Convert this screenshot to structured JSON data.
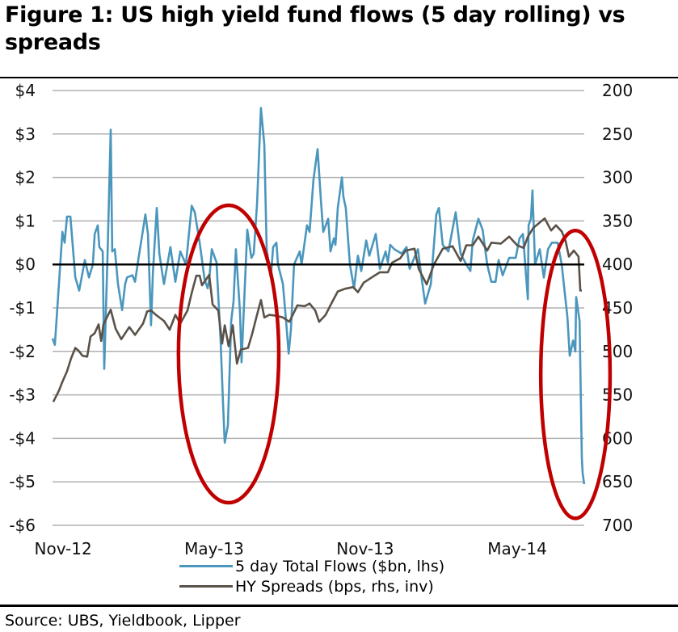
{
  "title": "Figure 1: US high yield fund flows (5 day rolling) vs spreads",
  "source": "Source:  UBS, Yieldbook, Lipper",
  "colors": {
    "flows": "#4a96bd",
    "spreads": "#5a5249",
    "annotation": "#c00000",
    "grid": "#b0b0b0",
    "zero": "#000000"
  },
  "chart_data": {
    "type": "line",
    "title": "Figure 1: US high yield fund flows (5 day rolling) vs spreads",
    "x_unit": "months since Nov-12",
    "xlim": [
      0,
      20.56
    ],
    "x_ticks": [
      {
        "x": 0.41,
        "label": "Nov-12"
      },
      {
        "x": 6.25,
        "label": "May-13"
      },
      {
        "x": 12.09,
        "label": "Nov-13"
      },
      {
        "x": 17.97,
        "label": "May-14"
      }
    ],
    "y_left": {
      "label": "5 day Total Flows ($bn)",
      "lim": [
        -6,
        4
      ],
      "ticks": [
        4,
        3,
        2,
        1,
        0,
        -1,
        -2,
        -3,
        -4,
        -5,
        -6
      ],
      "tick_labels": [
        "$4",
        "$3",
        "$2",
        "$1",
        "$0",
        "-$1",
        "-$2",
        "-$3",
        "-$4",
        "-$5",
        "-$6"
      ]
    },
    "y_right": {
      "label": "HY Spreads (bps, inverted)",
      "lim": [
        200,
        700
      ],
      "inverted": true,
      "ticks": [
        200,
        250,
        300,
        350,
        400,
        450,
        500,
        550,
        600,
        650,
        700
      ],
      "tick_labels": [
        "200",
        "250",
        "300",
        "350",
        "400",
        "450",
        "500",
        "550",
        "600",
        "650",
        "700"
      ]
    },
    "grid": true,
    "legend": [
      {
        "label": "5 day Total Flows ($bn, lhs)",
        "series": "flows"
      },
      {
        "label": "HY Spreads (bps, rhs, inv)",
        "series": "spreads"
      }
    ],
    "series": [
      {
        "name": "5 day Total Flows ($bn, lhs)",
        "key": "flows",
        "axis": "left",
        "points": [
          [
            0,
            -1.7
          ],
          [
            0.09,
            -1.85
          ],
          [
            0.31,
            0.1
          ],
          [
            0.38,
            0.75
          ],
          [
            0.47,
            0.5
          ],
          [
            0.56,
            1.1
          ],
          [
            0.69,
            1.1
          ],
          [
            0.88,
            -0.3
          ],
          [
            1.03,
            -0.6
          ],
          [
            1.25,
            0.1
          ],
          [
            1.41,
            -0.3
          ],
          [
            1.56,
            0
          ],
          [
            1.63,
            0.7
          ],
          [
            1.75,
            0.9
          ],
          [
            1.81,
            0.4
          ],
          [
            1.94,
            0.3
          ],
          [
            2.0,
            -2.4
          ],
          [
            2.13,
            0.3
          ],
          [
            2.25,
            3.1
          ],
          [
            2.31,
            0.3
          ],
          [
            2.41,
            0.35
          ],
          [
            2.53,
            -0.45
          ],
          [
            2.69,
            -1.05
          ],
          [
            2.81,
            -0.45
          ],
          [
            2.88,
            -0.3
          ],
          [
            3.09,
            -0.25
          ],
          [
            3.19,
            -0.4
          ],
          [
            3.34,
            0.2
          ],
          [
            3.5,
            0.8
          ],
          [
            3.59,
            1.15
          ],
          [
            3.69,
            0.7
          ],
          [
            3.81,
            -1.4
          ],
          [
            3.88,
            -0.2
          ],
          [
            4.03,
            1.3
          ],
          [
            4.13,
            0.25
          ],
          [
            4.22,
            -0.1
          ],
          [
            4.31,
            -0.45
          ],
          [
            4.56,
            0.4
          ],
          [
            4.75,
            -0.4
          ],
          [
            4.94,
            0.3
          ],
          [
            5.16,
            0
          ],
          [
            5.38,
            1.35
          ],
          [
            5.5,
            1.2
          ],
          [
            5.69,
            0.5
          ],
          [
            5.88,
            -0.35
          ],
          [
            6.0,
            -0.55
          ],
          [
            6.06,
            -0.35
          ],
          [
            6.16,
            0.35
          ],
          [
            6.34,
            0.05
          ],
          [
            6.5,
            -1.75
          ],
          [
            6.59,
            -3.15
          ],
          [
            6.66,
            -4.1
          ],
          [
            6.78,
            -3.7
          ],
          [
            6.91,
            -1.3
          ],
          [
            7.0,
            -0.85
          ],
          [
            7.09,
            0.35
          ],
          [
            7.25,
            -1.1
          ],
          [
            7.31,
            -2.25
          ],
          [
            7.44,
            -0.45
          ],
          [
            7.53,
            0.8
          ],
          [
            7.69,
            0.15
          ],
          [
            7.78,
            0.25
          ],
          [
            7.91,
            1.4
          ],
          [
            8.06,
            3.6
          ],
          [
            8.19,
            2.75
          ],
          [
            8.28,
            0.35
          ],
          [
            8.44,
            -0.3
          ],
          [
            8.53,
            0.4
          ],
          [
            8.66,
            0.5
          ],
          [
            8.72,
            0
          ],
          [
            8.91,
            -0.45
          ],
          [
            9.03,
            -1.3
          ],
          [
            9.13,
            -2.05
          ],
          [
            9.22,
            -1.5
          ],
          [
            9.34,
            0
          ],
          [
            9.56,
            0.3
          ],
          [
            9.63,
            0
          ],
          [
            9.84,
            0.9
          ],
          [
            9.94,
            0.75
          ],
          [
            10.09,
            1.95
          ],
          [
            10.25,
            2.65
          ],
          [
            10.38,
            1.45
          ],
          [
            10.47,
            0.75
          ],
          [
            10.66,
            1.05
          ],
          [
            10.75,
            0.3
          ],
          [
            10.88,
            0.6
          ],
          [
            10.94,
            0.45
          ],
          [
            11.03,
            1.3
          ],
          [
            11.19,
            2.0
          ],
          [
            11.25,
            1.55
          ],
          [
            11.34,
            1.3
          ],
          [
            11.5,
            0
          ],
          [
            11.66,
            -0.55
          ],
          [
            11.81,
            0.2
          ],
          [
            11.94,
            -0.15
          ],
          [
            12.13,
            0.55
          ],
          [
            12.25,
            0.2
          ],
          [
            12.5,
            0.7
          ],
          [
            12.66,
            -0.1
          ],
          [
            12.88,
            0.3
          ],
          [
            12.97,
            0.05
          ],
          [
            13.06,
            0.45
          ],
          [
            13.22,
            0.35
          ],
          [
            13.5,
            0.25
          ],
          [
            13.69,
            0.4
          ],
          [
            13.81,
            -0.1
          ],
          [
            14.13,
            0.35
          ],
          [
            14.28,
            -0.35
          ],
          [
            14.41,
            -0.9
          ],
          [
            14.63,
            -0.45
          ],
          [
            14.84,
            1.15
          ],
          [
            14.94,
            1.3
          ],
          [
            15.09,
            0.45
          ],
          [
            15.31,
            0.3
          ],
          [
            15.59,
            1.2
          ],
          [
            15.78,
            0.25
          ],
          [
            16.0,
            0
          ],
          [
            16.16,
            -0.15
          ],
          [
            16.25,
            0.55
          ],
          [
            16.47,
            1.05
          ],
          [
            16.63,
            0.8
          ],
          [
            16.81,
            0
          ],
          [
            16.97,
            -0.4
          ],
          [
            17.13,
            -0.4
          ],
          [
            17.25,
            0.1
          ],
          [
            17.41,
            -0.25
          ],
          [
            17.66,
            0.15
          ],
          [
            17.91,
            0.15
          ],
          [
            18.06,
            0.6
          ],
          [
            18.19,
            0.7
          ],
          [
            18.38,
            -0.8
          ],
          [
            18.41,
            0.9
          ],
          [
            18.5,
            1.05
          ],
          [
            18.56,
            1.7
          ],
          [
            18.66,
            0
          ],
          [
            18.84,
            0.35
          ],
          [
            19.0,
            -0.3
          ],
          [
            19.16,
            0.35
          ],
          [
            19.31,
            0.5
          ],
          [
            19.53,
            0.5
          ],
          [
            19.69,
            0
          ],
          [
            19.78,
            -0.5
          ],
          [
            19.91,
            -1.2
          ],
          [
            20.0,
            -2.1
          ],
          [
            20.13,
            -1.75
          ],
          [
            20.22,
            -2.0
          ],
          [
            20.25,
            -0.75
          ],
          [
            20.38,
            -1.3
          ],
          [
            20.47,
            -4.45
          ],
          [
            20.5,
            -4.8
          ],
          [
            20.56,
            -5.05
          ]
        ]
      },
      {
        "name": "HY Spreads (bps, rhs, inv)",
        "key": "spreads",
        "axis": "right",
        "points": [
          [
            0.03,
            558
          ],
          [
            0.25,
            545
          ],
          [
            0.38,
            535
          ],
          [
            0.56,
            523
          ],
          [
            0.72,
            508
          ],
          [
            0.88,
            496
          ],
          [
            1.0,
            499
          ],
          [
            1.16,
            505
          ],
          [
            1.34,
            506
          ],
          [
            1.47,
            483
          ],
          [
            1.63,
            479
          ],
          [
            1.78,
            469
          ],
          [
            1.88,
            488
          ],
          [
            1.97,
            469
          ],
          [
            2.25,
            452
          ],
          [
            2.44,
            474
          ],
          [
            2.66,
            486
          ],
          [
            2.97,
            472
          ],
          [
            3.19,
            481
          ],
          [
            3.5,
            468
          ],
          [
            3.66,
            454
          ],
          [
            3.81,
            453
          ],
          [
            4.0,
            458
          ],
          [
            4.31,
            465
          ],
          [
            4.53,
            475
          ],
          [
            4.75,
            458
          ],
          [
            4.94,
            468
          ],
          [
            5.22,
            453
          ],
          [
            5.38,
            433
          ],
          [
            5.56,
            413
          ],
          [
            5.69,
            413
          ],
          [
            5.78,
            424
          ],
          [
            6.06,
            412
          ],
          [
            6.19,
            446
          ],
          [
            6.41,
            453
          ],
          [
            6.56,
            491
          ],
          [
            6.66,
            470
          ],
          [
            6.81,
            494
          ],
          [
            6.97,
            470
          ],
          [
            7.13,
            514
          ],
          [
            7.28,
            498
          ],
          [
            7.56,
            496
          ],
          [
            7.72,
            480
          ],
          [
            7.88,
            461
          ],
          [
            8.06,
            441
          ],
          [
            8.19,
            461
          ],
          [
            8.38,
            458
          ],
          [
            8.66,
            459
          ],
          [
            8.91,
            461
          ],
          [
            9.16,
            466
          ],
          [
            9.47,
            447
          ],
          [
            9.75,
            448
          ],
          [
            9.94,
            445
          ],
          [
            10.16,
            453
          ],
          [
            10.31,
            466
          ],
          [
            10.56,
            458
          ],
          [
            10.78,
            445
          ],
          [
            11.03,
            431
          ],
          [
            11.31,
            428
          ],
          [
            11.63,
            426
          ],
          [
            11.81,
            432
          ],
          [
            12.03,
            421
          ],
          [
            12.34,
            415
          ],
          [
            12.66,
            409
          ],
          [
            12.97,
            409
          ],
          [
            13.13,
            398
          ],
          [
            13.44,
            393
          ],
          [
            13.66,
            384
          ],
          [
            14.0,
            382
          ],
          [
            14.16,
            405
          ],
          [
            14.47,
            423
          ],
          [
            14.75,
            400
          ],
          [
            15.09,
            382
          ],
          [
            15.47,
            379
          ],
          [
            15.78,
            396
          ],
          [
            16.0,
            378
          ],
          [
            16.25,
            378
          ],
          [
            16.47,
            368
          ],
          [
            16.81,
            384
          ],
          [
            16.97,
            375
          ],
          [
            17.34,
            376
          ],
          [
            17.66,
            368
          ],
          [
            17.97,
            378
          ],
          [
            18.22,
            381
          ],
          [
            18.38,
            368
          ],
          [
            18.59,
            358
          ],
          [
            19.03,
            347
          ],
          [
            19.28,
            361
          ],
          [
            19.47,
            355
          ],
          [
            19.69,
            362
          ],
          [
            19.84,
            373
          ],
          [
            19.97,
            391
          ],
          [
            20.16,
            384
          ],
          [
            20.34,
            391
          ],
          [
            20.41,
            430
          ],
          [
            20.47,
            430
          ]
        ]
      }
    ],
    "annotations": [
      {
        "type": "ellipse",
        "center": [
          6.81,
          -2.06
        ],
        "rx_months": 1.94,
        "ry_bn": 3.42
      },
      {
        "type": "ellipse",
        "center": [
          20.22,
          -2.53
        ],
        "rx_months": 1.34,
        "ry_bn": 3.31
      }
    ]
  }
}
